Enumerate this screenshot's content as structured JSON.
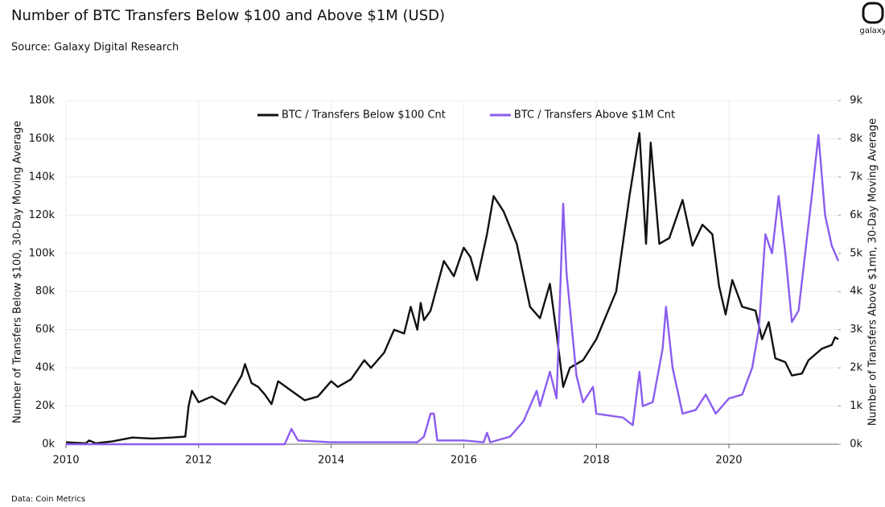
{
  "chart_data": {
    "type": "line",
    "title": "Number of BTC Transfers Below $100 and Above $1M (USD)",
    "subtitle": "Source: Galaxy Digital Research",
    "footnote": "Data: Coin Metrics",
    "logo_text": "galaxy",
    "ylabel": "Number of Transfers Below $100, 30-Day Moving Average",
    "y2label": "Number of Transfers Above $1mn, 30-Day Moving Average",
    "xlim": [
      2010,
      2021.65
    ],
    "xticks": [
      2010,
      2012,
      2014,
      2016,
      2018,
      2020
    ],
    "ylim": [
      0,
      180000
    ],
    "yticks": [
      {
        "value": 0,
        "label": "0k"
      },
      {
        "value": 20000,
        "label": "20k"
      },
      {
        "value": 40000,
        "label": "40k"
      },
      {
        "value": 60000,
        "label": "60k"
      },
      {
        "value": 80000,
        "label": "80k"
      },
      {
        "value": 100000,
        "label": "100k"
      },
      {
        "value": 120000,
        "label": "120k"
      },
      {
        "value": 140000,
        "label": "140k"
      },
      {
        "value": 160000,
        "label": "160k"
      },
      {
        "value": 180000,
        "label": "180k"
      }
    ],
    "y2lim": [
      0,
      9000
    ],
    "y2ticks": [
      {
        "value": 0,
        "label": "0k"
      },
      {
        "value": 1000,
        "label": "1k"
      },
      {
        "value": 2000,
        "label": "2k"
      },
      {
        "value": 3000,
        "label": "3k"
      },
      {
        "value": 4000,
        "label": "4k"
      },
      {
        "value": 5000,
        "label": "5k"
      },
      {
        "value": 6000,
        "label": "6k"
      },
      {
        "value": 7000,
        "label": "7k"
      },
      {
        "value": 8000,
        "label": "8k"
      },
      {
        "value": 9000,
        "label": "9k"
      }
    ],
    "grid": true,
    "legend": "top",
    "series": [
      {
        "name": "BTC / Transfers Below $100 Cnt",
        "color": "#111111",
        "axis": "y",
        "x": [
          2010.0,
          2010.3,
          2010.35,
          2010.45,
          2010.7,
          2011.0,
          2011.3,
          2011.6,
          2011.8,
          2011.85,
          2011.9,
          2012.0,
          2012.2,
          2012.4,
          2012.55,
          2012.65,
          2012.7,
          2012.8,
          2012.9,
          2013.0,
          2013.1,
          2013.2,
          2013.4,
          2013.6,
          2013.8,
          2014.0,
          2014.1,
          2014.3,
          2014.5,
          2014.6,
          2014.8,
          2014.95,
          2015.1,
          2015.2,
          2015.3,
          2015.35,
          2015.4,
          2015.5,
          2015.7,
          2015.85,
          2016.0,
          2016.1,
          2016.2,
          2016.35,
          2016.45,
          2016.6,
          2016.8,
          2017.0,
          2017.15,
          2017.3,
          2017.4,
          2017.5,
          2017.6,
          2017.8,
          2018.0,
          2018.3,
          2018.5,
          2018.65,
          2018.75,
          2018.82,
          2018.95,
          2019.1,
          2019.3,
          2019.45,
          2019.6,
          2019.75,
          2019.85,
          2019.95,
          2020.05,
          2020.2,
          2020.4,
          2020.5,
          2020.6,
          2020.7,
          2020.85,
          2020.95,
          2021.1,
          2021.2,
          2021.4,
          2021.55,
          2021.6,
          2021.65
        ],
        "values": [
          1000,
          500,
          2000,
          500,
          1500,
          3500,
          3000,
          3500,
          4000,
          20000,
          28000,
          22000,
          25000,
          21000,
          30000,
          36000,
          42000,
          32000,
          30000,
          26000,
          21000,
          33000,
          28000,
          23000,
          25000,
          33000,
          30000,
          34000,
          44000,
          40000,
          48000,
          60000,
          58000,
          72000,
          60000,
          74000,
          65000,
          70000,
          96000,
          88000,
          103000,
          98000,
          86000,
          110000,
          130000,
          122000,
          105000,
          72000,
          66000,
          84000,
          58000,
          30000,
          40000,
          44000,
          55000,
          80000,
          130000,
          163000,
          105000,
          158000,
          105000,
          108000,
          128000,
          104000,
          115000,
          110000,
          83000,
          68000,
          86000,
          72000,
          70000,
          55000,
          64000,
          45000,
          43000,
          36000,
          37000,
          44000,
          50000,
          52000,
          56000,
          55000
        ]
      },
      {
        "name": "BTC / Transfers Above $1M Cnt",
        "color": "#8b5cf0",
        "axis": "y2",
        "x": [
          2010.0,
          2013.3,
          2013.4,
          2013.5,
          2014.0,
          2015.3,
          2015.4,
          2015.5,
          2015.55,
          2015.6,
          2016.0,
          2016.3,
          2016.35,
          2016.4,
          2016.7,
          2016.9,
          2017.1,
          2017.15,
          2017.3,
          2017.4,
          2017.5,
          2017.55,
          2017.7,
          2017.8,
          2017.95,
          2018.0,
          2018.4,
          2018.55,
          2018.65,
          2018.7,
          2018.85,
          2019.0,
          2019.05,
          2019.15,
          2019.3,
          2019.5,
          2019.65,
          2019.8,
          2020.0,
          2020.2,
          2020.35,
          2020.45,
          2020.55,
          2020.65,
          2020.75,
          2020.85,
          2020.95,
          2021.05,
          2021.25,
          2021.35,
          2021.45,
          2021.55,
          2021.65
        ],
        "values": [
          0,
          0,
          400,
          100,
          50,
          50,
          200,
          800,
          800,
          100,
          100,
          50,
          300,
          50,
          200,
          600,
          1400,
          1000,
          1900,
          1200,
          6300,
          4500,
          1800,
          1100,
          1500,
          800,
          700,
          500,
          1900,
          1000,
          1100,
          2500,
          3600,
          2000,
          800,
          900,
          1300,
          800,
          1200,
          1300,
          2000,
          3000,
          5500,
          5000,
          6500,
          5000,
          3200,
          3500,
          6500,
          8100,
          6000,
          5200,
          4800
        ]
      }
    ]
  }
}
